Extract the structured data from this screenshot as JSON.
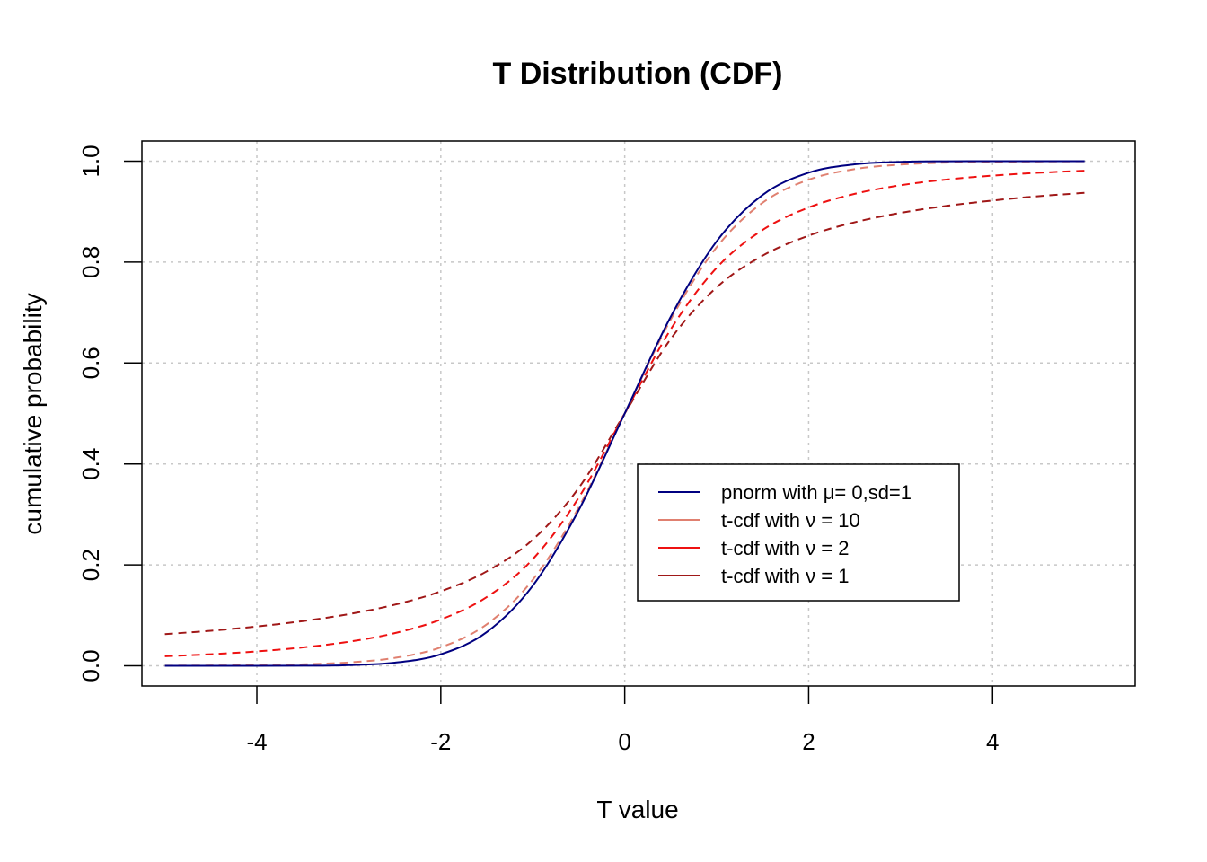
{
  "chart_data": {
    "type": "line",
    "title": "T Distribution (CDF)",
    "xlabel": "T value",
    "ylabel": "cumulative probability",
    "xlim": [
      -5.25,
      5.55
    ],
    "ylim": [
      -0.04,
      1.04
    ],
    "x_ticks": [
      -4,
      -2,
      0,
      2,
      4
    ],
    "x_tick_labels": [
      "-4",
      "-2",
      "0",
      "2",
      "4"
    ],
    "y_ticks": [
      0.0,
      0.2,
      0.4,
      0.6,
      0.8,
      1.0
    ],
    "y_tick_labels": [
      "0.0",
      "0.2",
      "0.4",
      "0.6",
      "0.8",
      "1.0"
    ],
    "grid": true,
    "legend_position": "bottom-right",
    "x": [
      -5,
      -4.5,
      -4,
      -3.5,
      -3,
      -2.5,
      -2,
      -1.5,
      -1,
      -0.5,
      0,
      0.5,
      1,
      1.5,
      2,
      2.5,
      3,
      3.5,
      4,
      4.5,
      5
    ],
    "series": [
      {
        "name": "pnorm with  μ= 0,sd=1",
        "color": "#000080",
        "dash": "solid",
        "values": [
          0.0,
          0.0,
          0.0,
          0.0002,
          0.0013,
          0.0062,
          0.0228,
          0.0668,
          0.1587,
          0.3085,
          0.5,
          0.6915,
          0.8413,
          0.9332,
          0.9772,
          0.9938,
          0.9987,
          0.9998,
          1.0,
          1.0,
          1.0
        ]
      },
      {
        "name": "t-cdf with ν = 10",
        "color": "#e08070",
        "dash": "dashed",
        "values": [
          0.0003,
          0.0006,
          0.0013,
          0.0029,
          0.0067,
          0.0157,
          0.0367,
          0.0823,
          0.1704,
          0.3139,
          0.5,
          0.6861,
          0.8296,
          0.9177,
          0.9633,
          0.9843,
          0.9933,
          0.9971,
          0.9987,
          0.9994,
          0.9997
        ]
      },
      {
        "name": "t-cdf with ν = 2",
        "color": "#ee1111",
        "dash": "dashed",
        "values": [
          0.0189,
          0.023,
          0.0286,
          0.0364,
          0.0477,
          0.0648,
          0.0918,
          0.1362,
          0.2113,
          0.3333,
          0.5,
          0.6667,
          0.7887,
          0.8638,
          0.9082,
          0.9352,
          0.9523,
          0.9636,
          0.9714,
          0.977,
          0.9811
        ]
      },
      {
        "name": "t-cdf with ν = 1",
        "color": "#a01818",
        "dash": "dashed",
        "values": [
          0.0628,
          0.0694,
          0.078,
          0.0886,
          0.1024,
          0.1211,
          0.1476,
          0.1872,
          0.25,
          0.3524,
          0.5,
          0.6476,
          0.75,
          0.8128,
          0.8524,
          0.8789,
          0.8976,
          0.9114,
          0.922,
          0.9306,
          0.9372
        ]
      }
    ]
  }
}
